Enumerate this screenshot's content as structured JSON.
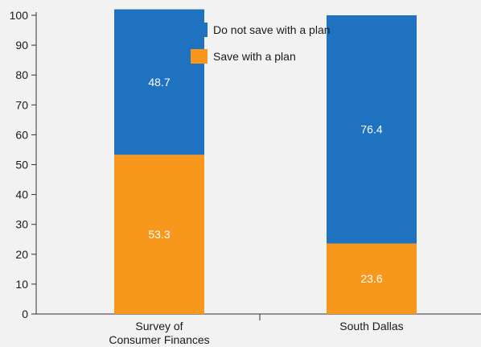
{
  "colors": {
    "do_not_save": "#1f72c0",
    "save": "#f7981d"
  },
  "legend": [
    {
      "key": "do_not_save",
      "label": "Do not save with a plan"
    },
    {
      "key": "save",
      "label": "Save with a plan"
    }
  ],
  "chart_data": {
    "type": "bar",
    "stacked": true,
    "categories": [
      [
        "Survey of",
        "Consumer Finances"
      ],
      [
        "South Dallas"
      ]
    ],
    "series": [
      {
        "key": "save",
        "name": "Save with a plan",
        "values": [
          53.3,
          23.6
        ]
      },
      {
        "key": "do_not_save",
        "name": "Do not save with a plan",
        "values": [
          48.7,
          76.4
        ]
      }
    ],
    "ylim": [
      0,
      100
    ],
    "yticks": [
      0,
      10,
      20,
      30,
      40,
      50,
      60,
      70,
      80,
      90,
      100
    ],
    "legend_position": "top-center",
    "grid": false,
    "title": "",
    "xlabel": "",
    "ylabel": ""
  }
}
